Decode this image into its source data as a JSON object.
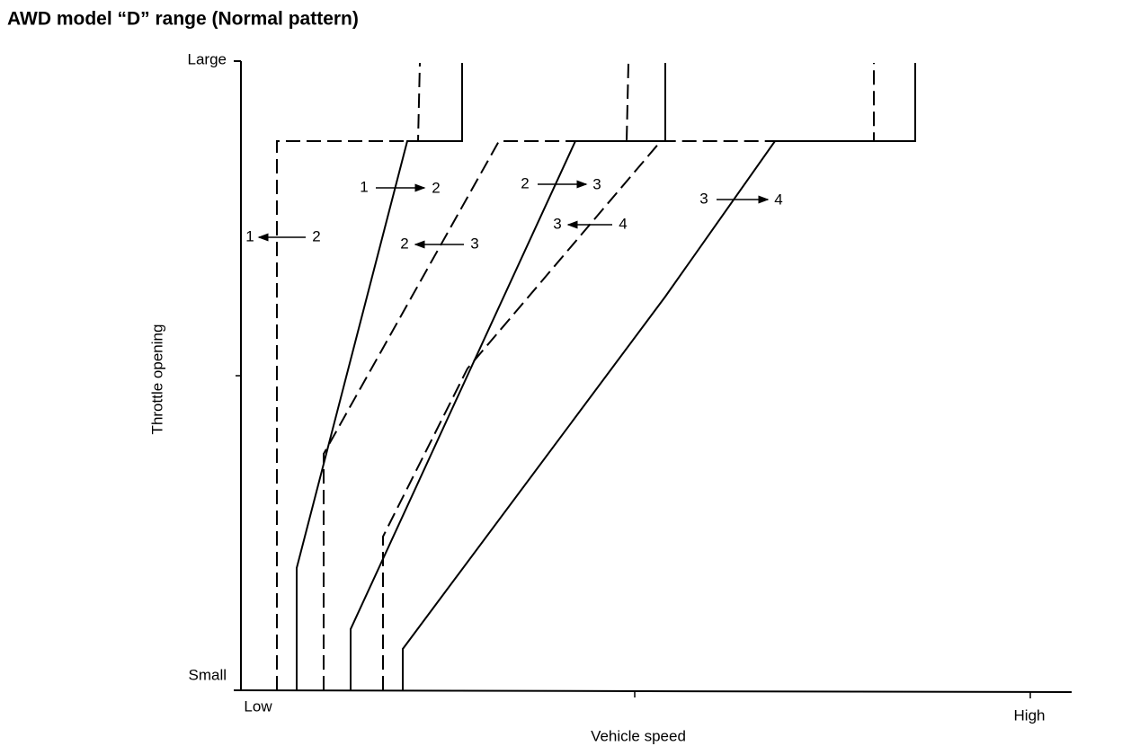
{
  "title": "AWD model “D” range (Normal pattern)",
  "y_axis": {
    "label": "Throttle opening",
    "ticks": [
      "Large",
      "Small"
    ]
  },
  "x_axis": {
    "label": "Vehicle speed",
    "ticks": [
      "Low",
      "High"
    ]
  },
  "shift_labels": [
    {
      "from": "1",
      "to": "2"
    },
    {
      "from": "2",
      "to": "1"
    },
    {
      "from": "3",
      "to": "2"
    },
    {
      "from": "2",
      "to": "3"
    },
    {
      "from": "4",
      "to": "3"
    },
    {
      "from": "3",
      "to": "4"
    }
  ]
}
